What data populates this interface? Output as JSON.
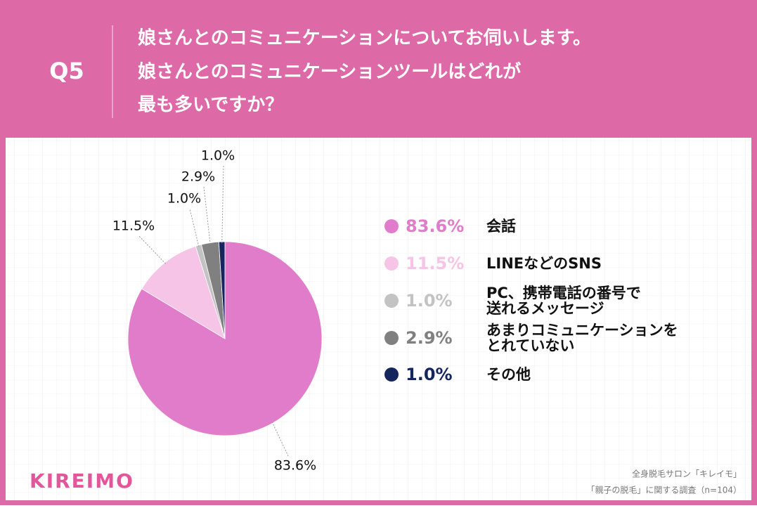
{
  "question": "Q5",
  "brand": "KIREIMO",
  "source_lines": [
    "全身脱毛サロン「キレイモ」",
    "「親子の脱毛」に関する調査（n=104）"
  ],
  "chart_data": {
    "type": "pie",
    "title_lines": [
      "娘さんとのコミュニケーションについてお伺いします。",
      "娘さんとのコミュニケーションツールはどれが",
      "最も多いですか？"
    ],
    "categories": [
      "会話",
      "LINEなどのSNS",
      "PC、携帯電話の番号で\n送れるメッセージ",
      "あまりコミュニケーションを\nとれていない",
      "その他"
    ],
    "values": [
      83.6,
      11.5,
      1.0,
      2.9,
      1.0
    ],
    "value_labels": [
      "83.6%",
      "11.5%",
      "1.0%",
      "2.9%",
      "1.0%"
    ],
    "colors": [
      "#e07cca",
      "#f6c4e6",
      "#c3c3c3",
      "#808080",
      "#15265f"
    ],
    "legend": "right"
  }
}
